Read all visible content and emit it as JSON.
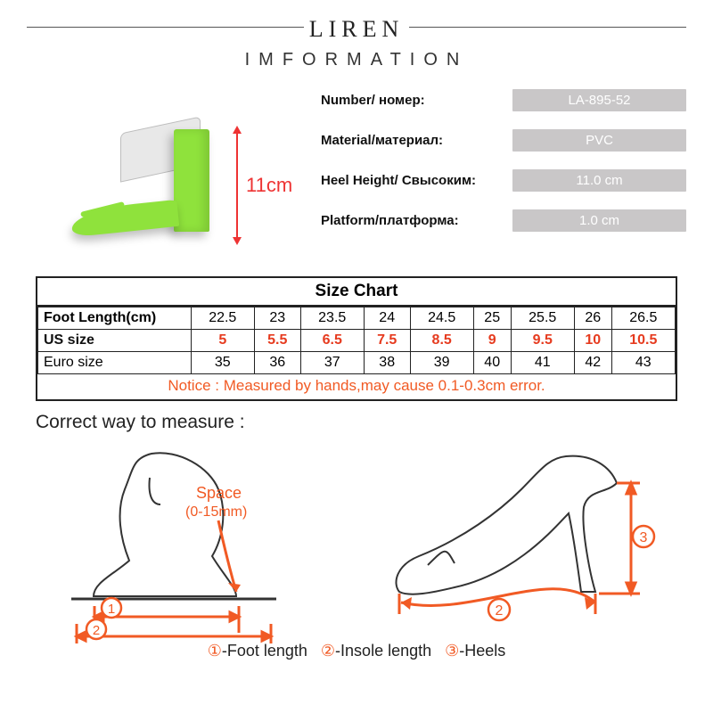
{
  "brand": "LIREN",
  "subheading": "IMFORMATION",
  "heel_dim": "11cm",
  "specs": [
    {
      "label": "Number/ номер:",
      "value": "LA-895-52"
    },
    {
      "label": "Material/материал:",
      "value": "PVC"
    },
    {
      "label": "Heel Height/ Свысоким:",
      "value": "11.0 cm"
    },
    {
      "label": "Platform/платформа:",
      "value": "1.0 cm"
    }
  ],
  "size_chart": {
    "title": "Size Chart",
    "rows": [
      {
        "header": "Foot Length(cm)",
        "class": "fl",
        "cells": [
          "22.5",
          "23",
          "23.5",
          "24",
          "24.5",
          "25",
          "25.5",
          "26",
          "26.5"
        ]
      },
      {
        "header": "US size",
        "class": "us",
        "cells": [
          "5",
          "5.5",
          "6.5",
          "7.5",
          "8.5",
          "9",
          "9.5",
          "10",
          "10.5"
        ]
      },
      {
        "header": "Euro size",
        "class": "euro",
        "cells": [
          "35",
          "36",
          "37",
          "38",
          "39",
          "40",
          "41",
          "42",
          "43"
        ]
      }
    ],
    "notice": "Notice : Measured by hands,may cause 0.1-0.3cm error."
  },
  "measure_title": "Correct way to measure :",
  "space_label": "Space",
  "space_range": "(0-15mm)",
  "legend": {
    "items": [
      {
        "n": "①",
        "t": "-Foot length"
      },
      {
        "n": "②",
        "t": "-Insole length"
      },
      {
        "n": "③",
        "t": "-Heels"
      }
    ]
  },
  "colors": {
    "accent_orange": "#f15a24",
    "accent_red": "#e33",
    "badge_bg": "#c9c7c8",
    "shoe_green": "#8fe23c"
  }
}
